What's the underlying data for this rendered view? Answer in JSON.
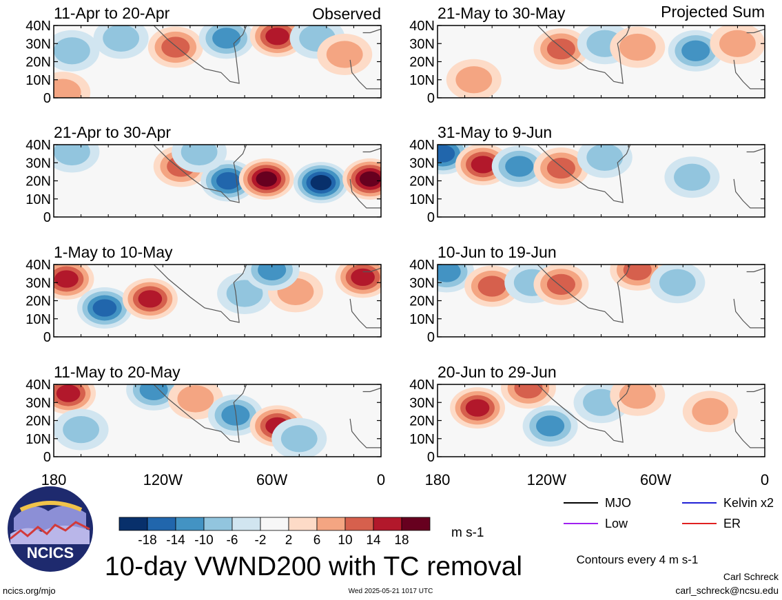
{
  "figure": {
    "title": "10-day VWND200 with TC removal",
    "observed_label": "Observed",
    "projected_label": "Projected Sum",
    "contour_note": "Contours every 4 m s-1",
    "units": "m s-1",
    "author": "Carl Schreck",
    "email": "carl_schreck@ncsu.edu",
    "url": "ncics.org/mjo",
    "timestamp": "Wed 2025-05-21 1017 UTC",
    "logo_text": "NCICS"
  },
  "legend": {
    "items": [
      {
        "label": "MJO",
        "color": "#000000"
      },
      {
        "label": "Kelvin x2",
        "color": "#1f1fd6"
      },
      {
        "label": "Low",
        "color": "#a020f0"
      },
      {
        "label": "ER",
        "color": "#e02020"
      }
    ]
  },
  "colorbar": {
    "tick_labels": [
      "-18",
      "-14",
      "-10",
      "-6",
      "-2",
      "2",
      "6",
      "10",
      "14",
      "18"
    ],
    "colors": [
      "#08306b",
      "#2166ac",
      "#4393c3",
      "#92c5de",
      "#d1e5f0",
      "#f7f7f7",
      "#fddbc7",
      "#f4a582",
      "#d6604d",
      "#b2182b",
      "#67001f"
    ]
  },
  "chart_data": {
    "type": "heatmap",
    "x_ticks": [
      "180",
      "120W",
      "60W",
      "0"
    ],
    "y_ticks": [
      "0",
      "10N",
      "20N",
      "30N",
      "40N"
    ],
    "x_range_deg": [
      -180,
      0
    ],
    "y_range_deg": [
      0,
      40
    ],
    "panels": [
      {
        "date_range": "11-Apr to 20-Apr",
        "column": "observed",
        "anomalies": [
          {
            "lon": -170,
            "lat": 26,
            "value": -6
          },
          {
            "lon": -143,
            "lat": 33,
            "value": -6
          },
          {
            "lon": -113,
            "lat": 28,
            "value": 8
          },
          {
            "lon": -85,
            "lat": 33,
            "value": -8
          },
          {
            "lon": -57,
            "lat": 34,
            "value": 14
          },
          {
            "lon": -35,
            "lat": 33,
            "value": -6
          },
          {
            "lon": -20,
            "lat": 24,
            "value": 6
          },
          {
            "lon": -175,
            "lat": 3,
            "value": 6
          }
        ]
      },
      {
        "date_range": "21-Apr to 30-Apr",
        "column": "observed",
        "anomalies": [
          {
            "lon": -170,
            "lat": 36,
            "value": -6
          },
          {
            "lon": -110,
            "lat": 28,
            "value": 8
          },
          {
            "lon": -84,
            "lat": 20,
            "value": -14
          },
          {
            "lon": -63,
            "lat": 21,
            "value": 18
          },
          {
            "lon": -33,
            "lat": 19,
            "value": -18
          },
          {
            "lon": -6,
            "lat": 21,
            "value": 18
          },
          {
            "lon": -100,
            "lat": 36,
            "value": -6
          }
        ]
      },
      {
        "date_range": "1-May to 10-May",
        "column": "observed",
        "anomalies": [
          {
            "lon": -173,
            "lat": 32,
            "value": 12
          },
          {
            "lon": -152,
            "lat": 16,
            "value": -12
          },
          {
            "lon": -127,
            "lat": 21,
            "value": 12
          },
          {
            "lon": -75,
            "lat": 24,
            "value": -6
          },
          {
            "lon": -47,
            "lat": 25,
            "value": 6
          },
          {
            "lon": -10,
            "lat": 33,
            "value": 12
          },
          {
            "lon": -60,
            "lat": 37,
            "value": -8
          }
        ]
      },
      {
        "date_range": "11-May to 20-May",
        "column": "observed",
        "anomalies": [
          {
            "lon": -172,
            "lat": 35,
            "value": 14
          },
          {
            "lon": -125,
            "lat": 37,
            "value": -8
          },
          {
            "lon": -102,
            "lat": 32,
            "value": 6
          },
          {
            "lon": -80,
            "lat": 23,
            "value": -10
          },
          {
            "lon": -57,
            "lat": 17,
            "value": 12
          },
          {
            "lon": -45,
            "lat": 10,
            "value": -4
          },
          {
            "lon": -165,
            "lat": 15,
            "value": -4
          }
        ]
      },
      {
        "date_range": "21-May to 30-May",
        "column": "projected",
        "anomalies": [
          {
            "lon": -160,
            "lat": 10,
            "value": 6
          },
          {
            "lon": -112,
            "lat": 27,
            "value": 10
          },
          {
            "lon": -88,
            "lat": 30,
            "value": -6
          },
          {
            "lon": -70,
            "lat": 28,
            "value": 6
          },
          {
            "lon": -38,
            "lat": 26,
            "value": -8
          },
          {
            "lon": -15,
            "lat": 30,
            "value": 6
          }
        ]
      },
      {
        "date_range": "31-May to 9-Jun",
        "column": "projected",
        "anomalies": [
          {
            "lon": -177,
            "lat": 35,
            "value": -14
          },
          {
            "lon": -155,
            "lat": 29,
            "value": 12
          },
          {
            "lon": -135,
            "lat": 28,
            "value": -8
          },
          {
            "lon": -112,
            "lat": 27,
            "value": 8
          },
          {
            "lon": -88,
            "lat": 33,
            "value": -6
          },
          {
            "lon": -40,
            "lat": 22,
            "value": -4
          }
        ]
      },
      {
        "date_range": "10-Jun to 19-Jun",
        "column": "projected",
        "anomalies": [
          {
            "lon": -175,
            "lat": 36,
            "value": -8
          },
          {
            "lon": -150,
            "lat": 28,
            "value": 8
          },
          {
            "lon": -128,
            "lat": 30,
            "value": -6
          },
          {
            "lon": -112,
            "lat": 29,
            "value": 8
          },
          {
            "lon": -70,
            "lat": 37,
            "value": 10
          },
          {
            "lon": -48,
            "lat": 30,
            "value": -4
          }
        ]
      },
      {
        "date_range": "20-Jun to 29-Jun",
        "column": "projected",
        "anomalies": [
          {
            "lon": -158,
            "lat": 27,
            "value": 12
          },
          {
            "lon": -130,
            "lat": 38,
            "value": 10
          },
          {
            "lon": -118,
            "lat": 17,
            "value": -10
          },
          {
            "lon": -90,
            "lat": 30,
            "value": -6
          },
          {
            "lon": -70,
            "lat": 34,
            "value": 4
          },
          {
            "lon": -30,
            "lat": 25,
            "value": 3
          }
        ]
      }
    ]
  }
}
